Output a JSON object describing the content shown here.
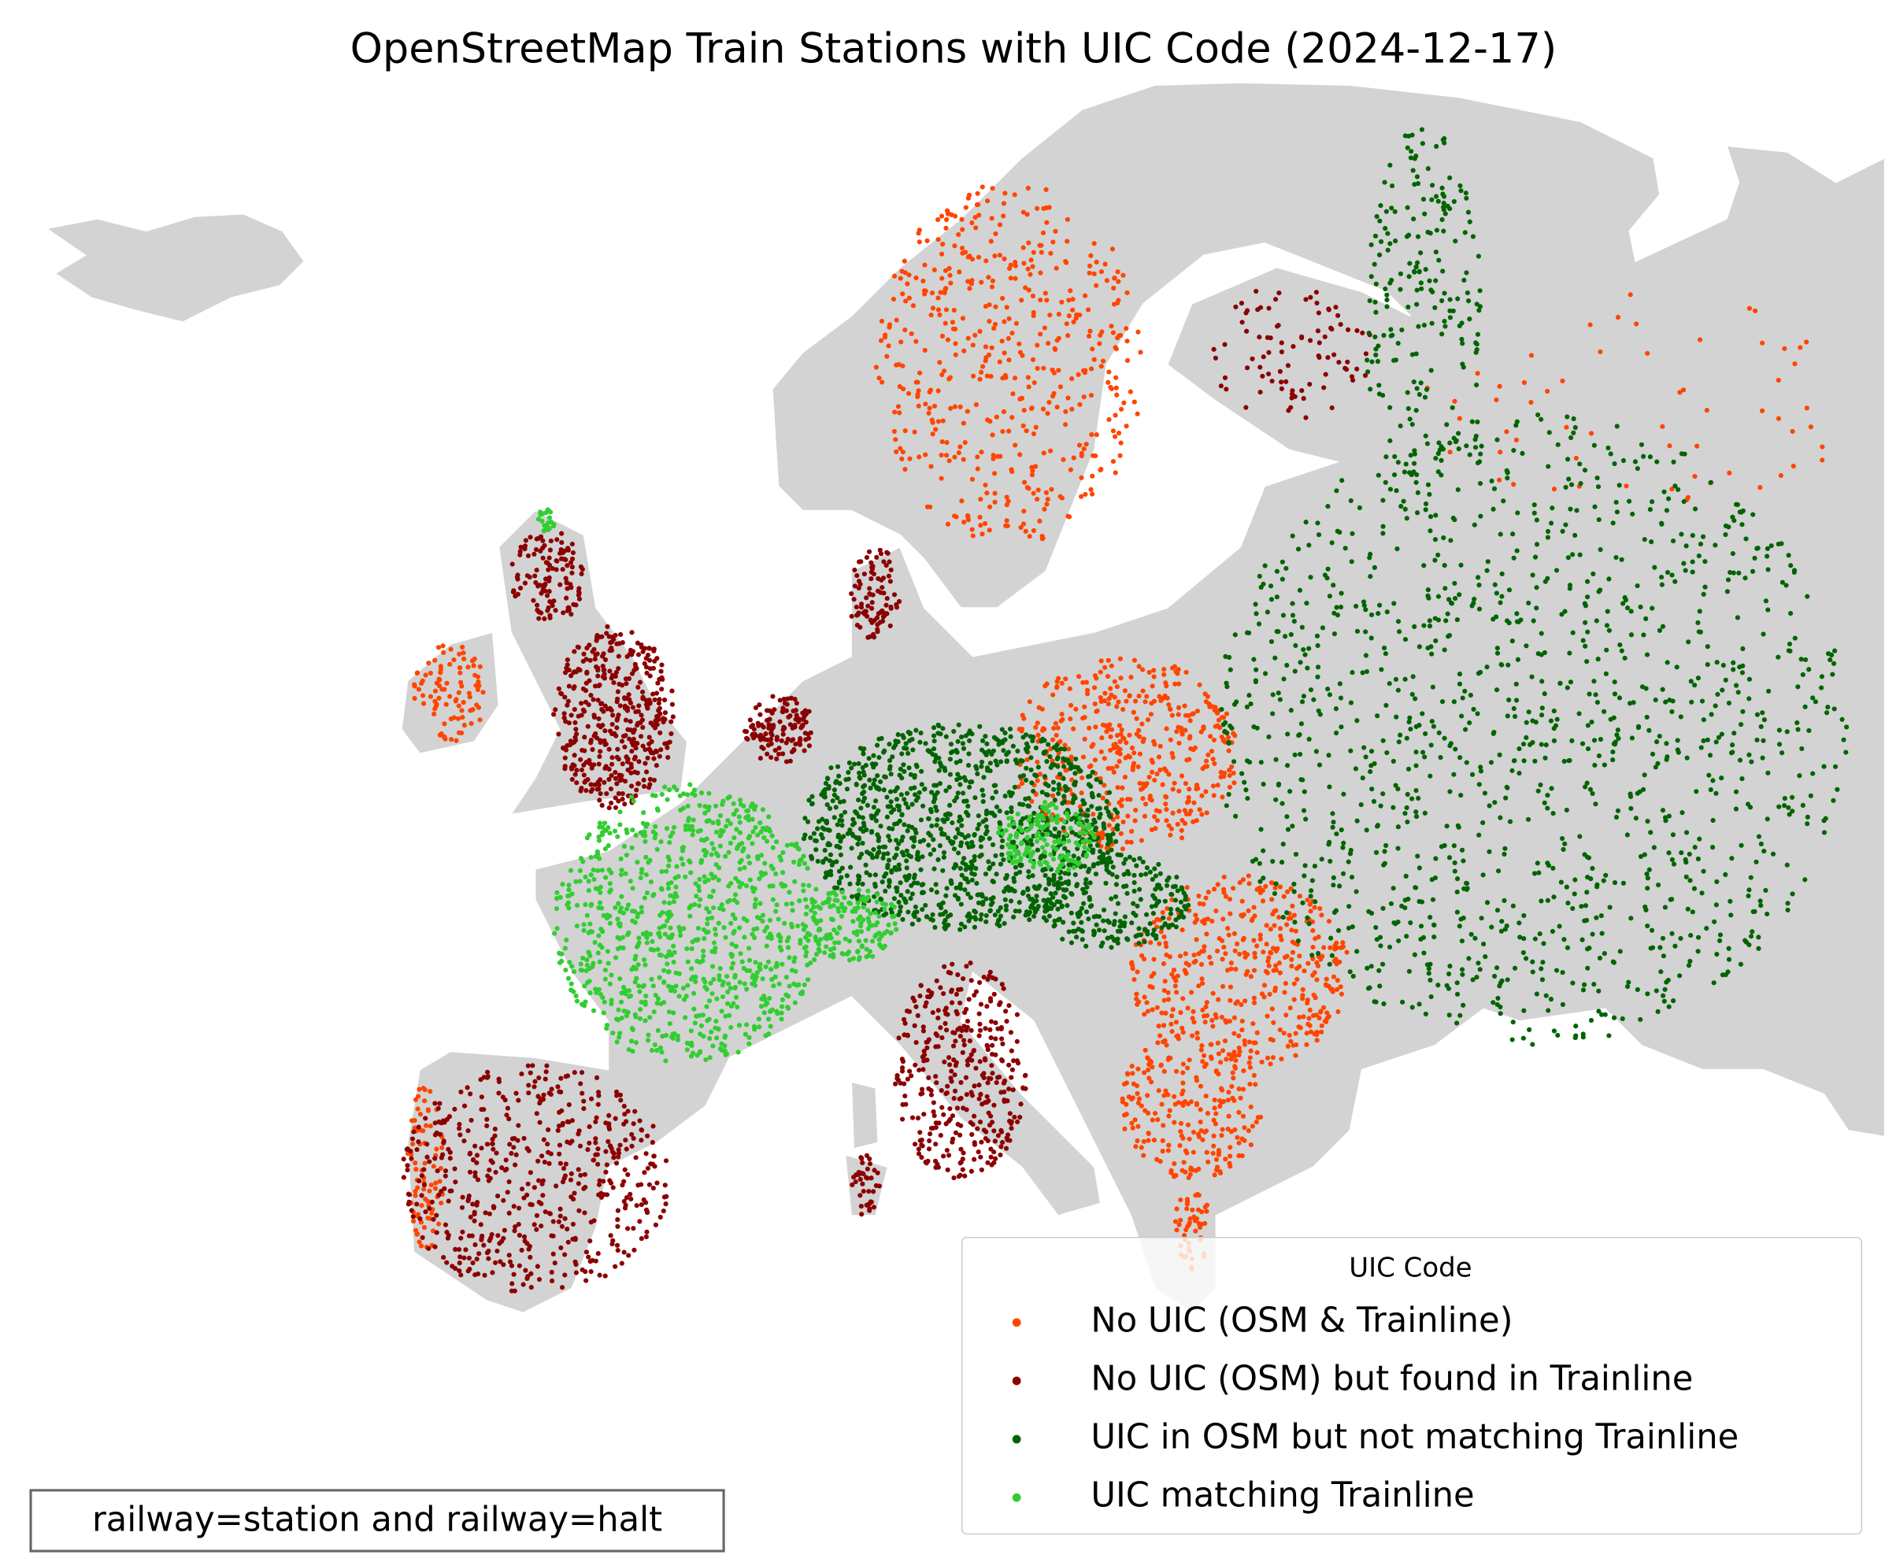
{
  "title": "OpenStreetMap Train Stations with UIC Code (2024-12-17)",
  "legend": {
    "title": "UIC Code",
    "entries": [
      {
        "name": "No UIC (OSM & Trainline)",
        "color": "#ff4500"
      },
      {
        "name": "No UIC (OSM) but found in Trainline",
        "color": "#8b0000"
      },
      {
        "name": "UIC in OSM but not matching Trainline",
        "color": "#006400"
      },
      {
        "name": "UIC matching Trainline",
        "color": "#32cd32"
      }
    ]
  },
  "annotation": "railway=station and railway=halt"
}
